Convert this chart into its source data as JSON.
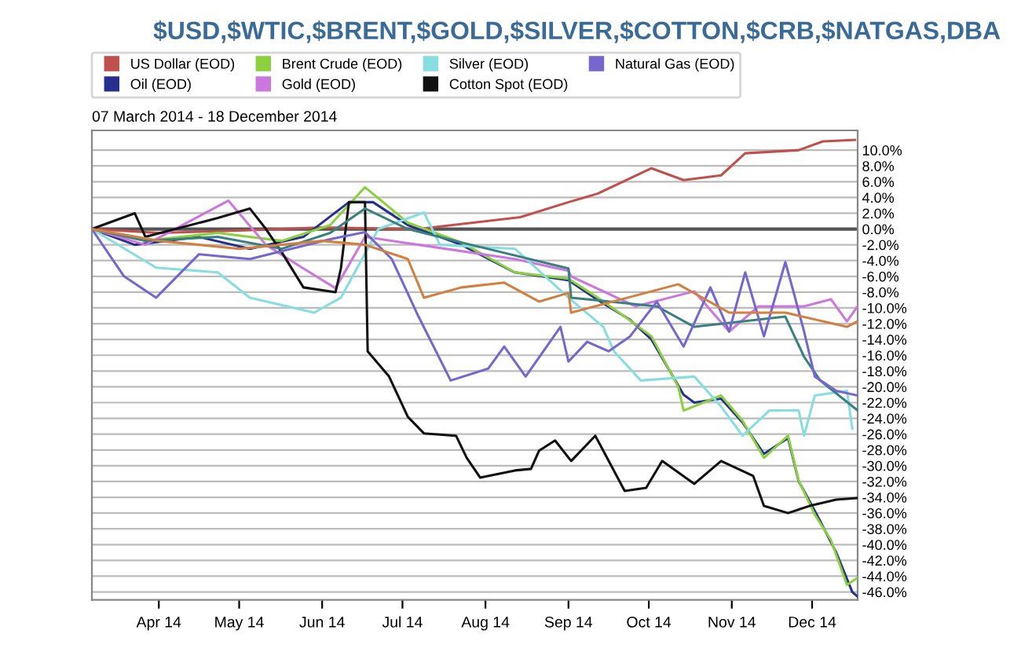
{
  "chart_data": {
    "type": "line",
    "title": "$USD,$WTIC,$BRENT,$GOLD,$SILVER,$COTTON,$CRB,$NATGAS,DBA",
    "subtitle": "07 March 2014 - 18 December 2014",
    "xlim": [
      "2014-03-07",
      "2014-12-18"
    ],
    "xticks": [
      {
        "value": "2014-04-01",
        "label": "Apr 14"
      },
      {
        "value": "2014-05-01",
        "label": "May 14"
      },
      {
        "value": "2014-06-01",
        "label": "Jun 14"
      },
      {
        "value": "2014-07-01",
        "label": "Jul 14"
      },
      {
        "value": "2014-08-01",
        "label": "Aug 14"
      },
      {
        "value": "2014-09-01",
        "label": "Sep 14"
      },
      {
        "value": "2014-10-01",
        "label": "Oct 14"
      },
      {
        "value": "2014-11-01",
        "label": "Nov 14"
      },
      {
        "value": "2014-12-01",
        "label": "Dec 14"
      }
    ],
    "ylim": [
      -47,
      12.5
    ],
    "yticks": [
      {
        "value": -46,
        "label": "-46.0%"
      },
      {
        "value": -44,
        "label": "-44.0%"
      },
      {
        "value": -42,
        "label": "-42.0%"
      },
      {
        "value": -40,
        "label": "-40.0%"
      },
      {
        "value": -38,
        "label": "-38.0%"
      },
      {
        "value": -36,
        "label": "-36.0%"
      },
      {
        "value": -34,
        "label": "-34.0%"
      },
      {
        "value": -32,
        "label": "-32.0%"
      },
      {
        "value": -30,
        "label": "-30.0%"
      },
      {
        "value": -28,
        "label": "-28.0%"
      },
      {
        "value": -26,
        "label": "-26.0%"
      },
      {
        "value": -24,
        "label": "-24.0%"
      },
      {
        "value": -22,
        "label": "-22.0%"
      },
      {
        "value": -20,
        "label": "-20.0%"
      },
      {
        "value": -18,
        "label": "-18.0%"
      },
      {
        "value": -16,
        "label": "-16.0%"
      },
      {
        "value": -14,
        "label": "-14.0%"
      },
      {
        "value": -12,
        "label": "-12.0%"
      },
      {
        "value": -10,
        "label": "-10.0%"
      },
      {
        "value": -8,
        "label": "-8.0%"
      },
      {
        "value": -6,
        "label": "-6.0%"
      },
      {
        "value": -4,
        "label": "-4.0%"
      },
      {
        "value": -2,
        "label": "-2.0%"
      },
      {
        "value": 0,
        "label": "0.0%"
      },
      {
        "value": 2,
        "label": "2.0%"
      },
      {
        "value": 4,
        "label": "4.0%"
      },
      {
        "value": 6,
        "label": "6.0%"
      },
      {
        "value": 8,
        "label": "8.0%"
      },
      {
        "value": 10,
        "label": "10.0%"
      }
    ],
    "grid": "y",
    "legend": "top",
    "marker": "none",
    "line_style": "solid",
    "ref_lines": [
      {
        "axis": "y",
        "value": 0,
        "color": "#555555"
      }
    ],
    "series": [
      {
        "name": "US Dollar (EOD)",
        "color": "#c0504d",
        "x": [
          "2014-03-07",
          "2014-04-01",
          "2014-05-01",
          "2014-06-01",
          "2014-07-07",
          "2014-08-14",
          "2014-09-01",
          "2014-09-12",
          "2014-10-02",
          "2014-10-14",
          "2014-10-28",
          "2014-11-06",
          "2014-11-26",
          "2014-12-05",
          "2014-12-17"
        ],
        "values": [
          0,
          -0.5,
          -0.2,
          0.2,
          0,
          1.5,
          3.4,
          4.5,
          7.7,
          6.2,
          6.8,
          9.6,
          10,
          11.1,
          11.3
        ]
      },
      {
        "name": "Oil (EOD)",
        "color": "#27308f",
        "x": [
          "2014-03-07",
          "2014-03-23",
          "2014-04-16",
          "2014-05-05",
          "2014-05-25",
          "2014-06-11",
          "2014-06-20",
          "2014-07-03",
          "2014-07-23",
          "2014-08-12",
          "2014-09-01",
          "2014-09-12",
          "2014-09-24",
          "2014-10-02",
          "2014-10-14",
          "2014-10-18",
          "2014-10-28",
          "2014-11-05",
          "2014-11-13",
          "2014-11-22",
          "2014-11-26",
          "2014-11-28",
          "2014-12-04",
          "2014-12-10",
          "2014-12-16",
          "2014-12-18"
        ],
        "values": [
          0,
          -2,
          -1,
          -2.5,
          -1,
          3.4,
          3.4,
          0.5,
          -2,
          -5.5,
          -6.5,
          -9,
          -11.5,
          -14,
          -21,
          -22,
          -21.5,
          -24.5,
          -28.5,
          -26.5,
          -32,
          -33.2,
          -37,
          -41,
          -46,
          -46.6
        ]
      },
      {
        "name": "Brent Crude (EOD)",
        "color": "#8cd040",
        "x": [
          "2014-03-07",
          "2014-03-27",
          "2014-04-23",
          "2014-05-17",
          "2014-06-04",
          "2014-06-17",
          "2014-07-03",
          "2014-07-23",
          "2014-08-12",
          "2014-09-01",
          "2014-09-12",
          "2014-09-22",
          "2014-10-02",
          "2014-10-12",
          "2014-10-14",
          "2014-10-28",
          "2014-11-05",
          "2014-11-13",
          "2014-11-22",
          "2014-11-26",
          "2014-12-02",
          "2014-12-08",
          "2014-12-14",
          "2014-12-18"
        ],
        "values": [
          0,
          -1.5,
          -0.5,
          -1.5,
          0.5,
          5.3,
          0.8,
          -1.7,
          -5.5,
          -6.3,
          -8.7,
          -11.1,
          -13.6,
          -20,
          -23,
          -21.1,
          -24.3,
          -29,
          -26.2,
          -31.9,
          -36.2,
          -39.4,
          -45.1,
          -44.2
        ]
      },
      {
        "name": "Gold (EOD)",
        "color": "#cc77dd",
        "x": [
          "2014-03-07",
          "2014-03-27",
          "2014-04-27",
          "2014-05-11",
          "2014-05-25",
          "2014-06-06",
          "2014-06-17",
          "2014-07-07",
          "2014-08-12",
          "2014-09-01",
          "2014-09-02",
          "2014-09-26",
          "2014-10-18",
          "2014-10-31",
          "2014-11-11",
          "2014-11-28",
          "2014-12-08",
          "2014-12-14",
          "2014-12-18"
        ],
        "values": [
          0,
          -2,
          3.6,
          -2,
          -5,
          -7.5,
          -1,
          -2,
          -3.8,
          -5.3,
          -6,
          -9.8,
          -7.9,
          -13,
          -9.8,
          -9.8,
          -8.9,
          -11.7,
          -9.8
        ]
      },
      {
        "name": "Silver (EOD)",
        "color": "#88dde0",
        "x": [
          "2014-03-07",
          "2014-03-31",
          "2014-04-23",
          "2014-05-05",
          "2014-05-29",
          "2014-06-08",
          "2014-06-22",
          "2014-07-09",
          "2014-07-15",
          "2014-08-12",
          "2014-09-01",
          "2014-09-14",
          "2014-09-18",
          "2014-09-28",
          "2014-10-18",
          "2014-10-28",
          "2014-11-05",
          "2014-11-15",
          "2014-11-26",
          "2014-11-28",
          "2014-12-02",
          "2014-12-14",
          "2014-12-16"
        ],
        "values": [
          0,
          -4.9,
          -5.5,
          -8.7,
          -10.6,
          -8.7,
          0,
          2.1,
          -2,
          -2.5,
          -8.7,
          -12.4,
          -15.5,
          -19.2,
          -18.7,
          -22.5,
          -26.2,
          -23,
          -23,
          -26.2,
          -21.1,
          -20.5,
          -25.3
        ]
      },
      {
        "name": "Cotton Spot (EOD)",
        "color": "#111111",
        "x": [
          "2014-03-07",
          "2014-03-23",
          "2014-03-27",
          "2014-04-23",
          "2014-05-05",
          "2014-05-11",
          "2014-05-17",
          "2014-05-25",
          "2014-06-06",
          "2014-06-08",
          "2014-06-11",
          "2014-06-17",
          "2014-06-18",
          "2014-06-26",
          "2014-07-03",
          "2014-07-09",
          "2014-07-21",
          "2014-07-25",
          "2014-07-30",
          "2014-08-12",
          "2014-08-18",
          "2014-08-21",
          "2014-08-27",
          "2014-09-02",
          "2014-09-11",
          "2014-09-22",
          "2014-09-30",
          "2014-10-06",
          "2014-10-18",
          "2014-10-28",
          "2014-11-09",
          "2014-11-13",
          "2014-11-22",
          "2014-11-30",
          "2014-12-10",
          "2014-12-18"
        ],
        "values": [
          0,
          2,
          -1,
          1.4,
          2.6,
          0,
          -3,
          -7.4,
          -8,
          -5,
          3.4,
          3.4,
          -15.5,
          -18.7,
          -23.8,
          -25.9,
          -26.2,
          -29,
          -31.5,
          -30.6,
          -30.4,
          -28.1,
          -26.8,
          -29.4,
          -26.2,
          -33.2,
          -32.8,
          -29.4,
          -32.3,
          -29.4,
          -31.3,
          -35.1,
          -36,
          -35.1,
          -34.3,
          -34.1
        ]
      },
      {
        "color": "#3a8080",
        "x": [
          "2014-03-07",
          "2014-03-27",
          "2014-04-23",
          "2014-05-17",
          "2014-06-04",
          "2014-06-17",
          "2014-07-03",
          "2014-07-23",
          "2014-09-01",
          "2014-09-02",
          "2014-10-04",
          "2014-10-18",
          "2014-11-21",
          "2014-11-28",
          "2014-12-04",
          "2014-12-18"
        ],
        "values": [
          0,
          -1.5,
          -1,
          -2.5,
          -0.5,
          2.6,
          0,
          -1.7,
          -5,
          -8.7,
          -9.8,
          -12.4,
          -11.1,
          -16.2,
          -19.2,
          -23
        ]
      },
      {
        "name": "Natural Gas (EOD)",
        "color": "#7766cc",
        "x": [
          "2014-03-07",
          "2014-03-19",
          "2014-03-31",
          "2014-04-16",
          "2014-05-05",
          "2014-06-04",
          "2014-06-17",
          "2014-06-27",
          "2014-07-07",
          "2014-07-19",
          "2014-08-02",
          "2014-08-08",
          "2014-08-16",
          "2014-08-29",
          "2014-09-01",
          "2014-09-08",
          "2014-09-16",
          "2014-09-24",
          "2014-10-04",
          "2014-10-14",
          "2014-10-24",
          "2014-10-31",
          "2014-11-06",
          "2014-11-13",
          "2014-11-21",
          "2014-11-24",
          "2014-11-28",
          "2014-12-02",
          "2014-12-10",
          "2014-12-18"
        ],
        "values": [
          0,
          -6,
          -8.7,
          -3.2,
          -3.8,
          -1.3,
          -0.4,
          -3.8,
          -11.1,
          -19.2,
          -17.7,
          -14.9,
          -18.7,
          -12.4,
          -16.8,
          -14.3,
          -15.5,
          -13.6,
          -9.2,
          -14.9,
          -7.4,
          -13,
          -5.5,
          -13.6,
          -4.2,
          -7.9,
          -13,
          -18.7,
          -20.5,
          -21.1
        ]
      },
      {
        "color": "#d08040",
        "x": [
          "2014-03-07",
          "2014-04-01",
          "2014-05-01",
          "2014-06-01",
          "2014-06-17",
          "2014-07-03",
          "2014-07-09",
          "2014-07-23",
          "2014-08-08",
          "2014-08-21",
          "2014-09-01",
          "2014-09-02",
          "2014-10-12",
          "2014-10-31",
          "2014-11-21",
          "2014-12-14",
          "2014-12-18"
        ],
        "values": [
          0,
          -1.5,
          -2.5,
          -1.5,
          -2,
          -3.8,
          -8.7,
          -7.4,
          -6.8,
          -9.2,
          -8.1,
          -10.6,
          -7,
          -10.6,
          -10.6,
          -12.4,
          -11.7
        ]
      }
    ]
  }
}
